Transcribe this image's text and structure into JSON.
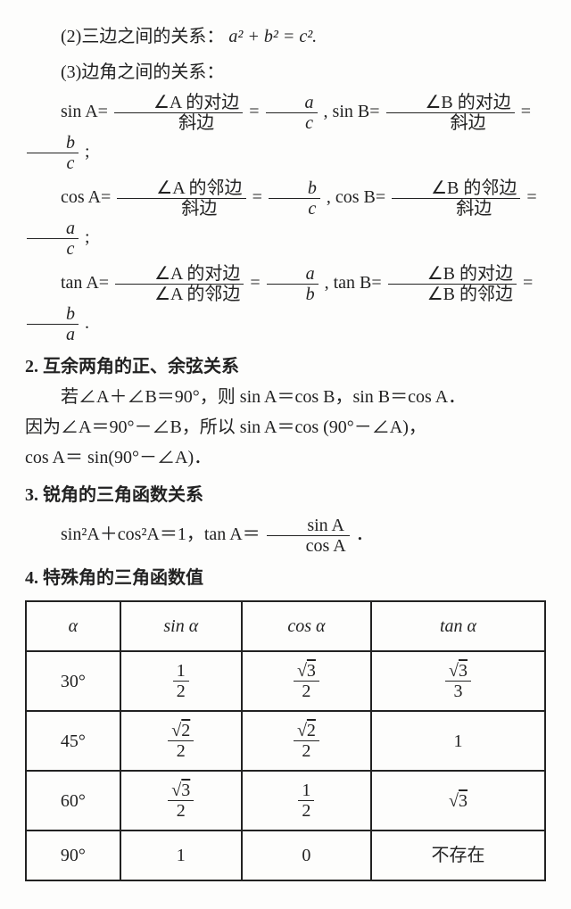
{
  "sec1": {
    "line2": "(2)三边之间的关系：",
    "eq2": "a² + b² = c².",
    "line3": "(3)边角之间的关系：",
    "sinA_l": "sin A=",
    "cosA_l": "cos A=",
    "tanA_l": "tan A=",
    "sinB_l": ", sin B=",
    "cosB_l": ", cos B=",
    "tanB_l": ", tan B=",
    "A_opp": "∠A 的对边",
    "A_adj": "∠A 的邻边",
    "B_opp": "∠B 的对边",
    "B_adj": "∠B 的邻边",
    "hyp": "斜边",
    "a": "a",
    "b": "b",
    "c": "c",
    "semi": ";",
    "period": "."
  },
  "sec2": {
    "heading": "2. 互余两角的正、余弦关系",
    "p1": "若∠A＋∠B＝90°，则 sin A＝cos B，sin B＝cos A．",
    "p2": "因为∠A＝90°－∠B，所以 sin A＝cos (90°－∠A)，",
    "p3": "cos A＝ sin(90°－∠A)．"
  },
  "sec3": {
    "heading": "3. 锐角的三角函数关系",
    "eq_l": "sin²A＋cos²A＝1，tan A＝",
    "num": "sin A",
    "den": "cos A",
    "period": "．"
  },
  "sec4": {
    "heading": "4. 特殊角的三角函数值",
    "table": {
      "columns": [
        "α",
        "sin α",
        "cos α",
        "tan α"
      ],
      "rows": [
        {
          "angle": "30°",
          "sin": {
            "num": "1",
            "den": "2"
          },
          "cos": {
            "num": "√3",
            "den": "2"
          },
          "tan": {
            "num": "√3",
            "den": "3"
          }
        },
        {
          "angle": "45°",
          "sin": {
            "num": "√2",
            "den": "2"
          },
          "cos": {
            "num": "√2",
            "den": "2"
          },
          "tan": "1"
        },
        {
          "angle": "60°",
          "sin": {
            "num": "√3",
            "den": "2"
          },
          "cos": {
            "num": "1",
            "den": "2"
          },
          "tan": "√3"
        },
        {
          "angle": "90°",
          "sin": "1",
          "cos": "0",
          "tan": "不存在"
        }
      ],
      "border_color": "#222222",
      "header_fontstyle": "italic"
    }
  }
}
